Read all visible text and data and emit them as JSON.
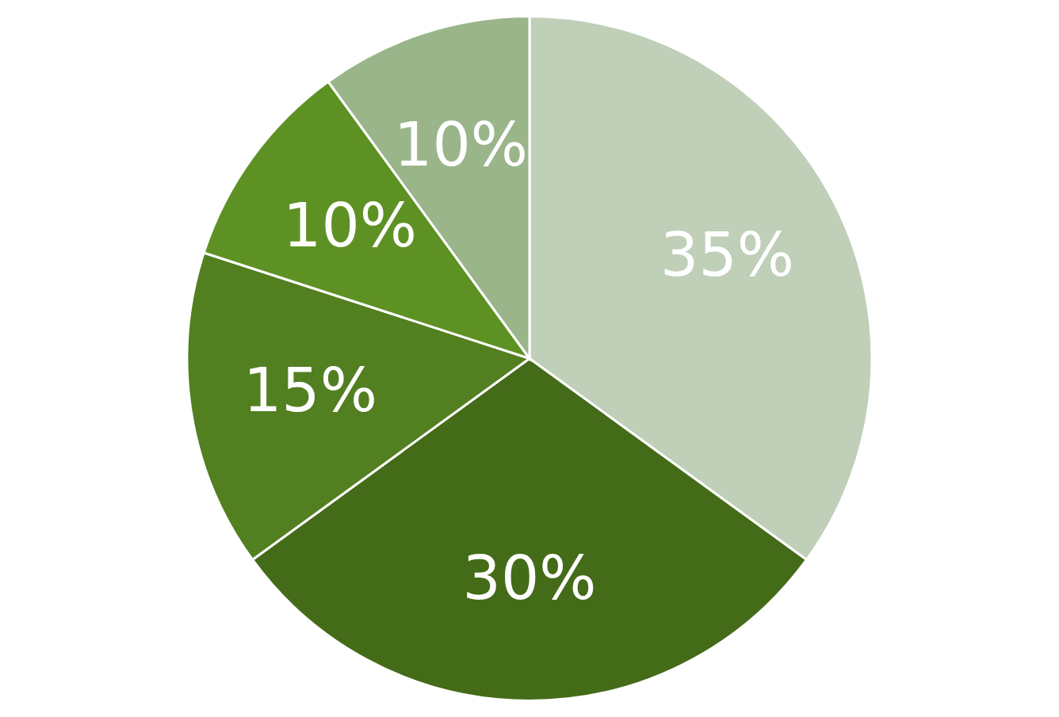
{
  "chart_data": {
    "type": "pie",
    "categories": [
      null,
      null,
      null,
      null,
      null
    ],
    "values": [
      35,
      30,
      15,
      10,
      10
    ],
    "colors": [
      "#bfcfb8",
      "#446b18",
      "#527f20",
      "#5e9123",
      "#9ab58a"
    ],
    "value_labels": [
      "35%",
      "30%",
      "15%",
      "10%",
      "10%"
    ]
  }
}
